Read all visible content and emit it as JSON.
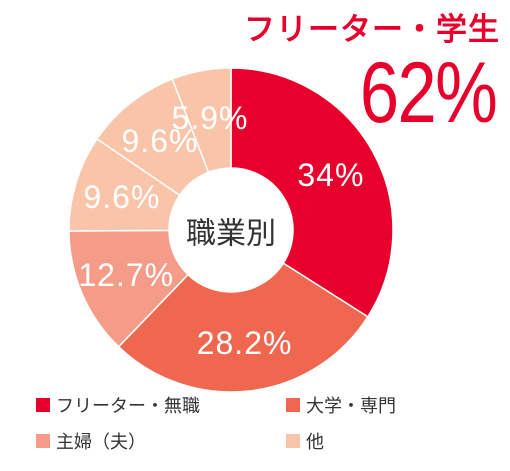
{
  "headline": "フリーター・学生",
  "highlight_value": "62%",
  "chart_data": {
    "type": "pie",
    "donut": true,
    "center_label": "職業別",
    "start_angle_deg": 0,
    "direction": "clockwise",
    "slices": [
      {
        "label": "フリーター・無職",
        "value": 34,
        "display": "34%",
        "color": "#e8002d"
      },
      {
        "label": "大学・専門",
        "value": 28.2,
        "display": "28.2%",
        "color": "#f0674f"
      },
      {
        "label": "主婦（夫）",
        "value": 12.7,
        "display": "12.7%",
        "color": "#f59c89"
      },
      {
        "label": "他",
        "value": 9.6,
        "display": "9.6%",
        "color": "#fac4a8"
      },
      {
        "label": "他",
        "value": 9.6,
        "display": "9.6%",
        "color": "#fac4a8"
      },
      {
        "label": "他",
        "value": 5.9,
        "display": "5.9%",
        "color": "#fac4a8"
      }
    ],
    "legend": [
      {
        "label": "フリーター・無職",
        "color": "#e8002d"
      },
      {
        "label": "大学・専門",
        "color": "#f0674f"
      },
      {
        "label": "主婦（夫）",
        "color": "#f59c89"
      },
      {
        "label": "他",
        "color": "#fac4a8"
      }
    ]
  }
}
